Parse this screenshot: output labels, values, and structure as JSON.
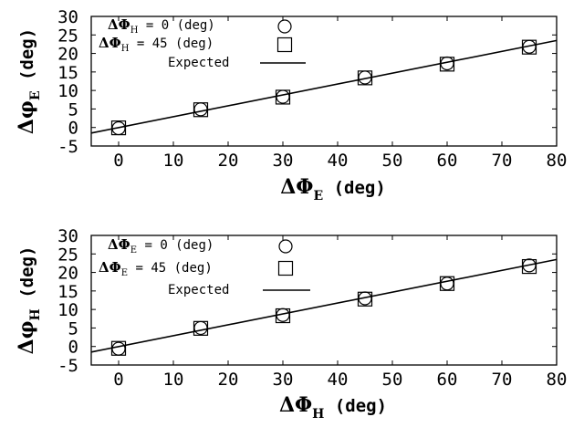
{
  "chart_data": [
    {
      "type": "scatter",
      "xlabel": {
        "symbol": "ΔΦ",
        "sub": "E",
        "unit": "(deg)"
      },
      "ylabel": {
        "symbol": "Δφ",
        "sub": "E",
        "unit": "(deg)"
      },
      "xlim": [
        -5,
        80
      ],
      "ylim": [
        -5,
        30
      ],
      "xticks": [
        0,
        10,
        20,
        30,
        40,
        50,
        60,
        70,
        80
      ],
      "yticks": [
        -5,
        0,
        5,
        10,
        15,
        20,
        25,
        30
      ],
      "legend_position": "top-left",
      "series": [
        {
          "legend": {
            "symbol": "ΔΦ",
            "sub": "H",
            "text": " = 0 (deg)"
          },
          "marker": "circle",
          "x": [
            0,
            15,
            30,
            45,
            60,
            75
          ],
          "y": [
            -0.2,
            4.9,
            8.3,
            13.5,
            17.3,
            21.8
          ]
        },
        {
          "legend": {
            "symbol": "ΔΦ",
            "sub": "H",
            "text": " = 45 (deg)"
          },
          "marker": "square",
          "x": [
            0,
            15,
            30,
            45,
            60,
            75
          ],
          "y": [
            -0.1,
            4.8,
            8.2,
            13.4,
            17.1,
            21.7
          ]
        },
        {
          "legend": {
            "text": "Expected"
          },
          "marker": "line",
          "x": [
            -5,
            80
          ],
          "y": [
            -1.5,
            23.5
          ]
        }
      ]
    },
    {
      "type": "scatter",
      "xlabel": {
        "symbol": "ΔΦ",
        "sub": "H",
        "unit": "(deg)"
      },
      "ylabel": {
        "symbol": "Δφ",
        "sub": "H",
        "unit": "(deg)"
      },
      "xlim": [
        -5,
        80
      ],
      "ylim": [
        -5,
        30
      ],
      "xticks": [
        0,
        10,
        20,
        30,
        40,
        50,
        60,
        70,
        80
      ],
      "yticks": [
        -5,
        0,
        5,
        10,
        15,
        20,
        25,
        30
      ],
      "legend_position": "top-left",
      "series": [
        {
          "legend": {
            "symbol": "ΔΦ",
            "sub": "E",
            "text": " = 0 (deg)"
          },
          "marker": "circle",
          "x": [
            0,
            15,
            30,
            45,
            60,
            75
          ],
          "y": [
            -0.6,
            5.0,
            8.5,
            13.0,
            17.0,
            21.9
          ]
        },
        {
          "legend": {
            "symbol": "ΔΦ",
            "sub": "E",
            "text": " = 45 (deg)"
          },
          "marker": "square",
          "x": [
            0,
            15,
            30,
            45,
            60,
            75
          ],
          "y": [
            -0.5,
            4.9,
            8.3,
            12.8,
            17.0,
            21.6
          ]
        },
        {
          "legend": {
            "text": "Expected"
          },
          "marker": "line",
          "x": [
            -5,
            80
          ],
          "y": [
            -1.5,
            23.5
          ]
        }
      ]
    }
  ]
}
